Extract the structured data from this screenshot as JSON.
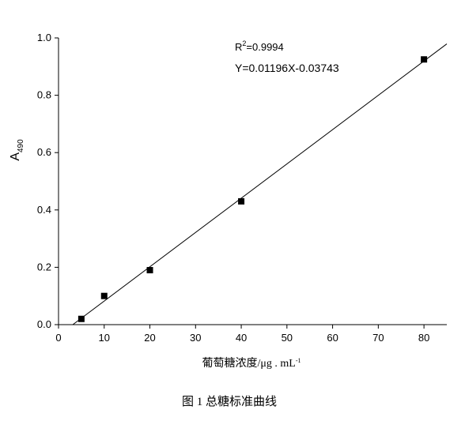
{
  "chart_data": {
    "type": "scatter",
    "annotation_r2": {
      "base": "R",
      "sup": "2",
      "text": "=0.9994"
    },
    "equation": "Y=0.01196X-0.03743",
    "fit": {
      "slope": 0.01196,
      "intercept": -0.03743
    },
    "x_label": "葡萄糖浓度/μg . mL",
    "x_label_sup": "-1",
    "y_label": "A",
    "y_label_sub": "490",
    "caption": "图 1   总糖标准曲线",
    "series": [
      {
        "name": "standard",
        "color": "#000000",
        "x": [
          5,
          10,
          20,
          40,
          80
        ],
        "values": [
          0.02,
          0.1,
          0.19,
          0.43,
          0.925
        ]
      }
    ],
    "xlim": [
      0,
      85
    ],
    "xticks": [
      0,
      10,
      20,
      30,
      40,
      50,
      60,
      70,
      80
    ],
    "ylim": [
      0,
      1.0
    ],
    "yticks": [
      {
        "value": 0,
        "label": "0.0"
      },
      0.2,
      0.4,
      0.6,
      0.8,
      {
        "value": 1,
        "label": "1.0"
      }
    ]
  }
}
